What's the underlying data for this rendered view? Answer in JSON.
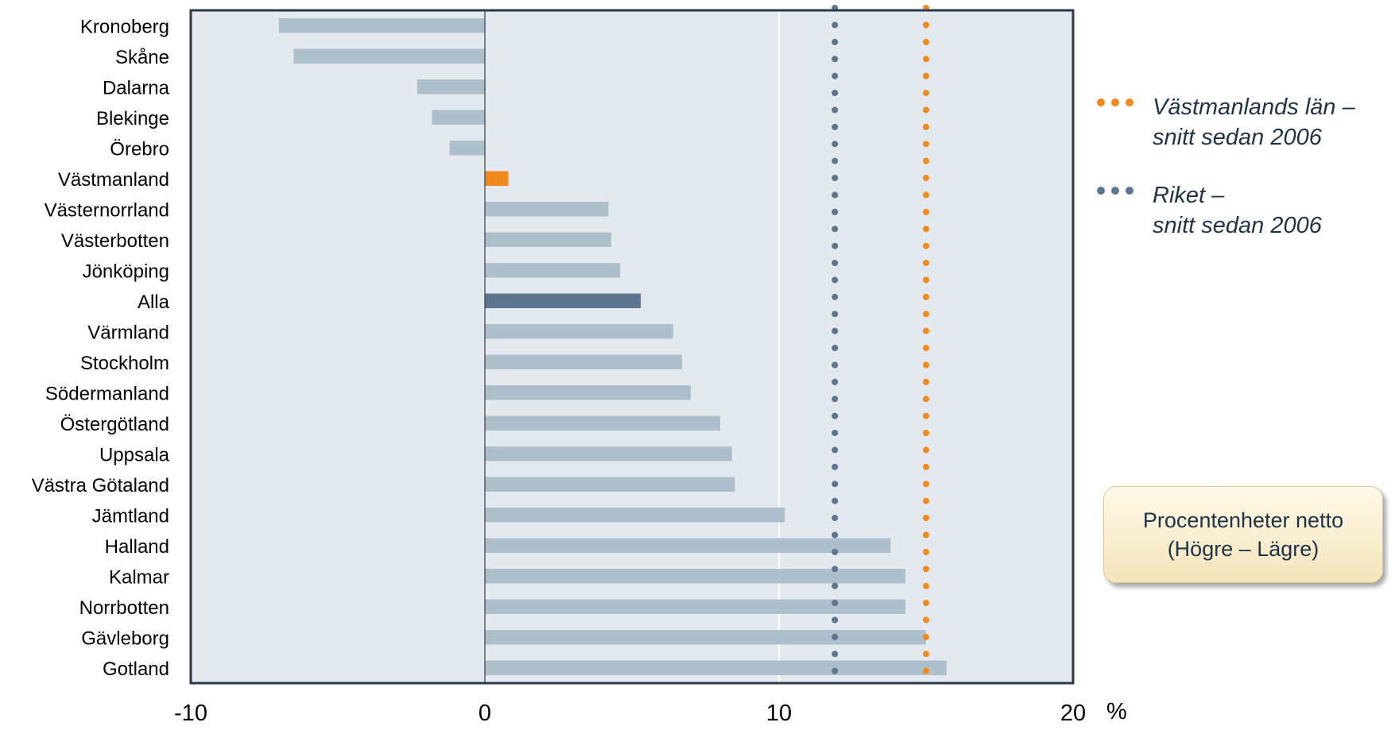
{
  "chart_data": {
    "type": "bar",
    "orientation": "horizontal",
    "categories": [
      "Kronoberg",
      "Skåne",
      "Dalarna",
      "Blekinge",
      "Örebro",
      "Västmanland",
      "Västernorrland",
      "Västerbotten",
      "Jönköping",
      "Alla",
      "Värmland",
      "Stockholm",
      "Södermanland",
      "Östergötland",
      "Uppsala",
      "Västra Götaland",
      "Jämtland",
      "Halland",
      "Kalmar",
      "Norrbotten",
      "Gävleborg",
      "Gotland"
    ],
    "values": [
      -7.0,
      -6.5,
      -2.3,
      -1.8,
      -1.2,
      0.8,
      4.2,
      4.3,
      4.6,
      5.3,
      6.4,
      6.7,
      7.0,
      8.0,
      8.4,
      8.5,
      10.2,
      13.8,
      14.3,
      14.3,
      15.0,
      15.7
    ],
    "highlight": {
      "Västmanland": "#f08a1e",
      "Alla": "#5c7690"
    },
    "bar_color": "#aebfcc",
    "xlim": [
      -10,
      20
    ],
    "xticks": [
      "-10",
      "0",
      "10",
      "20"
    ],
    "xunit": "%",
    "reference_lines": [
      {
        "label": "Riket – snitt sedan 2006",
        "value": 11.9,
        "color": "#5c7690"
      },
      {
        "label": "Västmanlands län – snitt sedan 2006",
        "value": 15.0,
        "color": "#f08a1e"
      }
    ],
    "plot_background": "#e4e9f0",
    "grid": "vertical at 10"
  },
  "legend": {
    "vastmanland": {
      "line1": "Västmanlands län –",
      "line2": "snitt sedan 2006",
      "color": "#f08a1e"
    },
    "riket": {
      "line1": "Riket –",
      "line2": "snitt sedan 2006",
      "color": "#5c7690"
    }
  },
  "note": {
    "line1": "Procentenheter netto",
    "line2": "(Högre – Lägre)"
  }
}
